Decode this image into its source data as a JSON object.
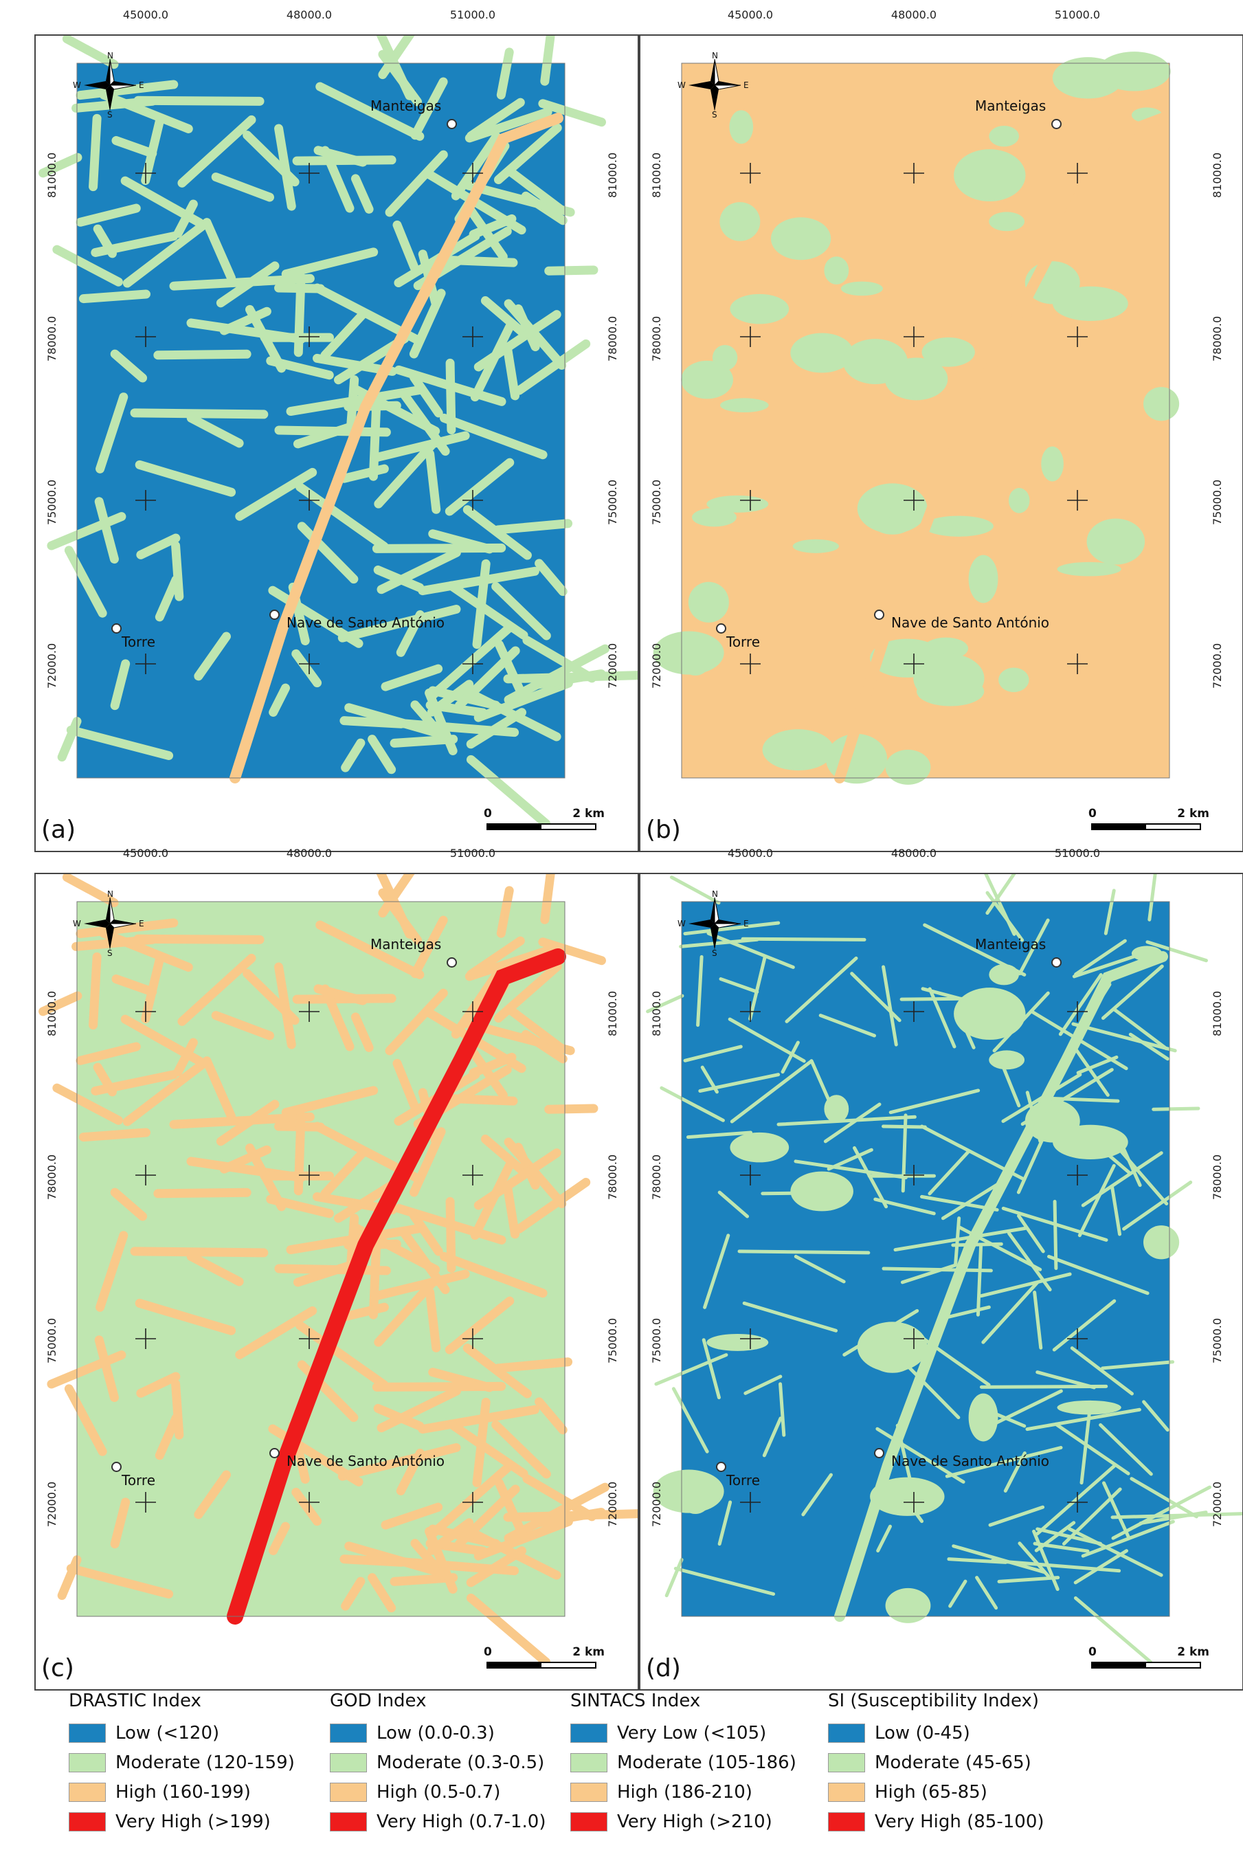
{
  "map": {
    "x_ticks": [
      "45000.0",
      "48000.0",
      "51000.0"
    ],
    "y_ticks": [
      "81000.0",
      "78000.0",
      "75000.0",
      "72000.0"
    ],
    "towns": [
      "Manteigas",
      "Torre",
      "Nave de Santo António"
    ],
    "scale_labels": [
      "0",
      "2 km"
    ],
    "compass": {
      "n": "N",
      "s": "S",
      "e": "E",
      "w": "W"
    },
    "colors": {
      "low": "#1b82be",
      "moderate": "#bfe6b0",
      "high": "#f9c98a",
      "very_high": "#ee1c1c"
    }
  },
  "panels": [
    {
      "label": "(a)",
      "base": "low",
      "pattern": "moderate",
      "valley": "high"
    },
    {
      "label": "(b)",
      "base": "high",
      "pattern": "moderate",
      "valley": "high"
    },
    {
      "label": "(c)",
      "base": "moderate",
      "pattern": "high",
      "valley": "very_high"
    },
    {
      "label": "(d)",
      "base": "low",
      "pattern": "moderate",
      "valley": "moderate"
    }
  ],
  "legends": [
    {
      "title": "DRASTIC Index",
      "items": [
        {
          "label": "Low (<120)",
          "color": "#1b82be"
        },
        {
          "label": "Moderate (120-159)",
          "color": "#bfe6b0"
        },
        {
          "label": "High (160-199)",
          "color": "#f9c98a"
        },
        {
          "label": "Very High (>199)",
          "color": "#ee1c1c"
        }
      ]
    },
    {
      "title": "GOD Index",
      "items": [
        {
          "label": "Low (0.0-0.3)",
          "color": "#1b82be"
        },
        {
          "label": "Moderate (0.3-0.5)",
          "color": "#bfe6b0"
        },
        {
          "label": "High (0.5-0.7)",
          "color": "#f9c98a"
        },
        {
          "label": "Very High (0.7-1.0)",
          "color": "#ee1c1c"
        }
      ]
    },
    {
      "title": "SINTACS Index",
      "items": [
        {
          "label": "Very Low (<105)",
          "color": "#1b82be"
        },
        {
          "label": "Moderate (105-186)",
          "color": "#bfe6b0"
        },
        {
          "label": "High (186-210)",
          "color": "#f9c98a"
        },
        {
          "label": "Very High (>210)",
          "color": "#ee1c1c"
        }
      ]
    },
    {
      "title": "SI (Susceptibility Index)",
      "items": [
        {
          "label": "Low (0-45)",
          "color": "#1b82be"
        },
        {
          "label": "Moderate (45-65)",
          "color": "#bfe6b0"
        },
        {
          "label": "High (65-85)",
          "color": "#f9c98a"
        },
        {
          "label": "Very High (85-100)",
          "color": "#ee1c1c"
        }
      ]
    }
  ]
}
